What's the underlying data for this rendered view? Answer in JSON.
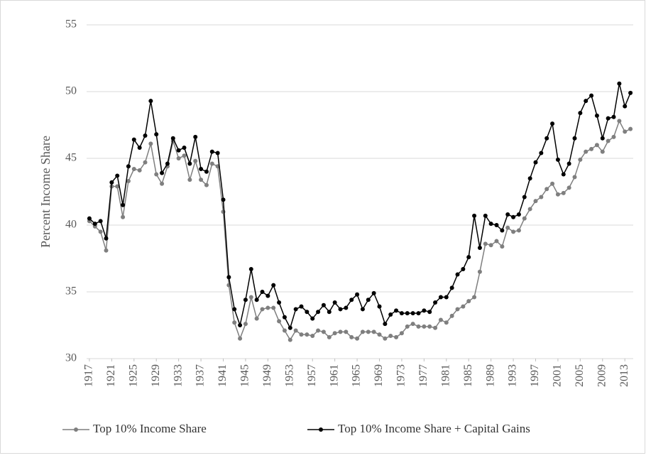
{
  "chart_data": {
    "type": "line",
    "y_label": "Percent Income Share",
    "x": [
      1917,
      1918,
      1919,
      1920,
      1921,
      1922,
      1923,
      1924,
      1925,
      1926,
      1927,
      1928,
      1929,
      1930,
      1931,
      1932,
      1933,
      1934,
      1935,
      1936,
      1937,
      1938,
      1939,
      1940,
      1941,
      1942,
      1943,
      1944,
      1945,
      1946,
      1947,
      1948,
      1949,
      1950,
      1951,
      1952,
      1953,
      1954,
      1955,
      1956,
      1957,
      1958,
      1959,
      1960,
      1961,
      1962,
      1963,
      1964,
      1965,
      1966,
      1967,
      1968,
      1969,
      1970,
      1971,
      1972,
      1973,
      1974,
      1975,
      1976,
      1977,
      1978,
      1979,
      1980,
      1981,
      1982,
      1983,
      1984,
      1985,
      1986,
      1987,
      1988,
      1989,
      1990,
      1991,
      1992,
      1993,
      1994,
      1995,
      1996,
      1997,
      1998,
      1999,
      2000,
      2001,
      2002,
      2003,
      2004,
      2005,
      2006,
      2007,
      2008,
      2009,
      2010,
      2011,
      2012,
      2013,
      2014
    ],
    "series": [
      {
        "name": "Top 10% Income Share",
        "color": "#7f7f7f",
        "values": [
          40.3,
          39.9,
          39.5,
          38.1,
          42.9,
          42.9,
          40.6,
          43.3,
          44.2,
          44.1,
          44.7,
          46.1,
          43.8,
          43.1,
          44.4,
          46.3,
          45.0,
          45.2,
          43.4,
          44.8,
          43.4,
          43.0,
          44.6,
          44.4,
          41.0,
          35.5,
          32.7,
          31.5,
          32.6,
          34.6,
          33.0,
          33.7,
          33.8,
          33.8,
          32.8,
          32.1,
          31.4,
          32.1,
          31.8,
          31.8,
          31.7,
          32.1,
          32.0,
          31.6,
          31.9,
          32.0,
          32.0,
          31.6,
          31.5,
          32.0,
          32.0,
          32.0,
          31.8,
          31.5,
          31.7,
          31.6,
          31.9,
          32.4,
          32.6,
          32.4,
          32.4,
          32.4,
          32.3,
          32.9,
          32.7,
          33.2,
          33.7,
          33.9,
          34.3,
          34.6,
          36.5,
          38.6,
          38.5,
          38.8,
          38.4,
          39.8,
          39.5,
          39.6,
          40.5,
          41.2,
          41.8,
          42.1,
          42.7,
          43.1,
          42.3,
          42.4,
          42.8,
          43.6,
          44.9,
          45.5,
          45.7,
          46.0,
          45.5,
          46.3,
          46.6,
          47.8,
          47.0,
          47.2
        ]
      },
      {
        "name": "Top 10% Income Share + Capital Gains",
        "color": "#000000",
        "values": [
          40.5,
          40.1,
          40.3,
          39.0,
          43.2,
          43.7,
          41.5,
          44.4,
          46.4,
          45.8,
          46.7,
          49.3,
          46.8,
          43.9,
          44.6,
          46.5,
          45.6,
          45.8,
          44.6,
          46.6,
          44.2,
          44.0,
          45.5,
          45.4,
          41.9,
          36.1,
          33.7,
          32.5,
          34.4,
          36.7,
          34.4,
          35.0,
          34.7,
          35.5,
          34.2,
          33.1,
          32.3,
          33.7,
          33.9,
          33.5,
          33.0,
          33.5,
          34.0,
          33.5,
          34.2,
          33.7,
          33.8,
          34.4,
          34.8,
          33.7,
          34.4,
          34.9,
          33.9,
          32.6,
          33.3,
          33.6,
          33.4,
          33.4,
          33.4,
          33.4,
          33.6,
          33.5,
          34.2,
          34.6,
          34.6,
          35.3,
          36.3,
          36.7,
          37.6,
          40.7,
          38.3,
          40.7,
          40.1,
          40.0,
          39.6,
          40.8,
          40.6,
          40.8,
          42.1,
          43.5,
          44.7,
          45.4,
          46.5,
          47.6,
          44.9,
          43.8,
          44.6,
          46.5,
          48.4,
          49.3,
          49.7,
          48.2,
          46.5,
          48.0,
          48.1,
          50.6,
          48.9,
          49.9
        ]
      }
    ],
    "xlim": [
      1916.5,
      2014.5
    ],
    "xticks": [
      1917,
      1921,
      1925,
      1929,
      1933,
      1937,
      1941,
      1945,
      1949,
      1953,
      1957,
      1961,
      1965,
      1969,
      1973,
      1977,
      1981,
      1985,
      1989,
      1993,
      1997,
      2001,
      2005,
      2009,
      2013
    ],
    "ylim": [
      30,
      55
    ],
    "yticks": [
      30,
      35,
      40,
      45,
      50,
      55
    ],
    "grid": true,
    "legend": "bottom"
  }
}
